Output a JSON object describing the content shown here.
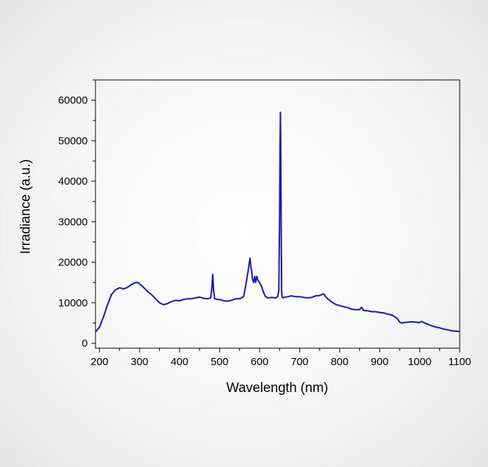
{
  "chart_data": {
    "type": "line",
    "title": "",
    "xlabel": "Wavelength (nm)",
    "ylabel": "Irradiance (a.u.)",
    "xlim": [
      190,
      1100
    ],
    "ylim": [
      -1200,
      65000
    ],
    "x_ticks": [
      200,
      300,
      400,
      500,
      600,
      700,
      800,
      900,
      1000,
      1100
    ],
    "y_ticks": [
      0,
      10000,
      20000,
      30000,
      40000,
      50000,
      60000
    ],
    "x_tick_labels": [
      "200",
      "300",
      "400",
      "500",
      "600",
      "700",
      "800",
      "900",
      "1000",
      "1100"
    ],
    "y_tick_labels": [
      "0",
      "10000",
      "20000",
      "30000",
      "40000",
      "50000",
      "60000"
    ],
    "grid": false,
    "line_color": "#1010e0",
    "series": [
      {
        "x": [
          190,
          200,
          210,
          220,
          230,
          240,
          250,
          255,
          260,
          270,
          280,
          290,
          295,
          300,
          310,
          320,
          330,
          340,
          350,
          360,
          370,
          380,
          390,
          400,
          410,
          420,
          430,
          440,
          450,
          460,
          470,
          478,
          481,
          483,
          485,
          488,
          495,
          500,
          510,
          520,
          530,
          540,
          550,
          560,
          565,
          570,
          573,
          576,
          578,
          580,
          582,
          585,
          588,
          590,
          593,
          596,
          600,
          605,
          610,
          615,
          620,
          630,
          640,
          645,
          648,
          650,
          651,
          652,
          653,
          654,
          655,
          656,
          658,
          660,
          670,
          680,
          690,
          700,
          710,
          720,
          730,
          740,
          750,
          760,
          765,
          770,
          780,
          790,
          800,
          810,
          820,
          830,
          840,
          850,
          855,
          860,
          870,
          880,
          890,
          900,
          910,
          920,
          930,
          940,
          945,
          950,
          955,
          960,
          970,
          980,
          990,
          1000,
          1005,
          1010,
          1020,
          1030,
          1040,
          1050,
          1060,
          1070,
          1080,
          1090,
          1100
        ],
        "y": [
          2800,
          4000,
          6500,
          9500,
          12000,
          13200,
          13700,
          13600,
          13400,
          13800,
          14500,
          15000,
          15000,
          14700,
          13800,
          12800,
          12000,
          11000,
          10000,
          9500,
          9800,
          10300,
          10600,
          10500,
          10800,
          11000,
          11000,
          11200,
          11400,
          11100,
          11000,
          11200,
          14000,
          17000,
          13000,
          11000,
          10800,
          10800,
          10500,
          10400,
          10600,
          11000,
          11000,
          11500,
          14000,
          17000,
          19000,
          21000,
          19000,
          18000,
          16000,
          15000,
          16500,
          15000,
          16500,
          15500,
          15000,
          14000,
          12500,
          11500,
          11200,
          11300,
          11200,
          11500,
          13000,
          30000,
          48000,
          57000,
          46000,
          28000,
          13000,
          11500,
          11200,
          11300,
          11500,
          11700,
          11500,
          11500,
          11300,
          11200,
          11300,
          11700,
          11800,
          12200,
          11500,
          11000,
          10200,
          9600,
          9300,
          9000,
          8800,
          8400,
          8300,
          8300,
          8900,
          8100,
          8000,
          7800,
          7800,
          7600,
          7500,
          7200,
          7000,
          6400,
          6000,
          5200,
          5000,
          5100,
          5200,
          5300,
          5200,
          5100,
          5400,
          5100,
          4700,
          4300,
          4000,
          3800,
          3500,
          3300,
          3100,
          3000,
          2900
        ]
      }
    ]
  }
}
